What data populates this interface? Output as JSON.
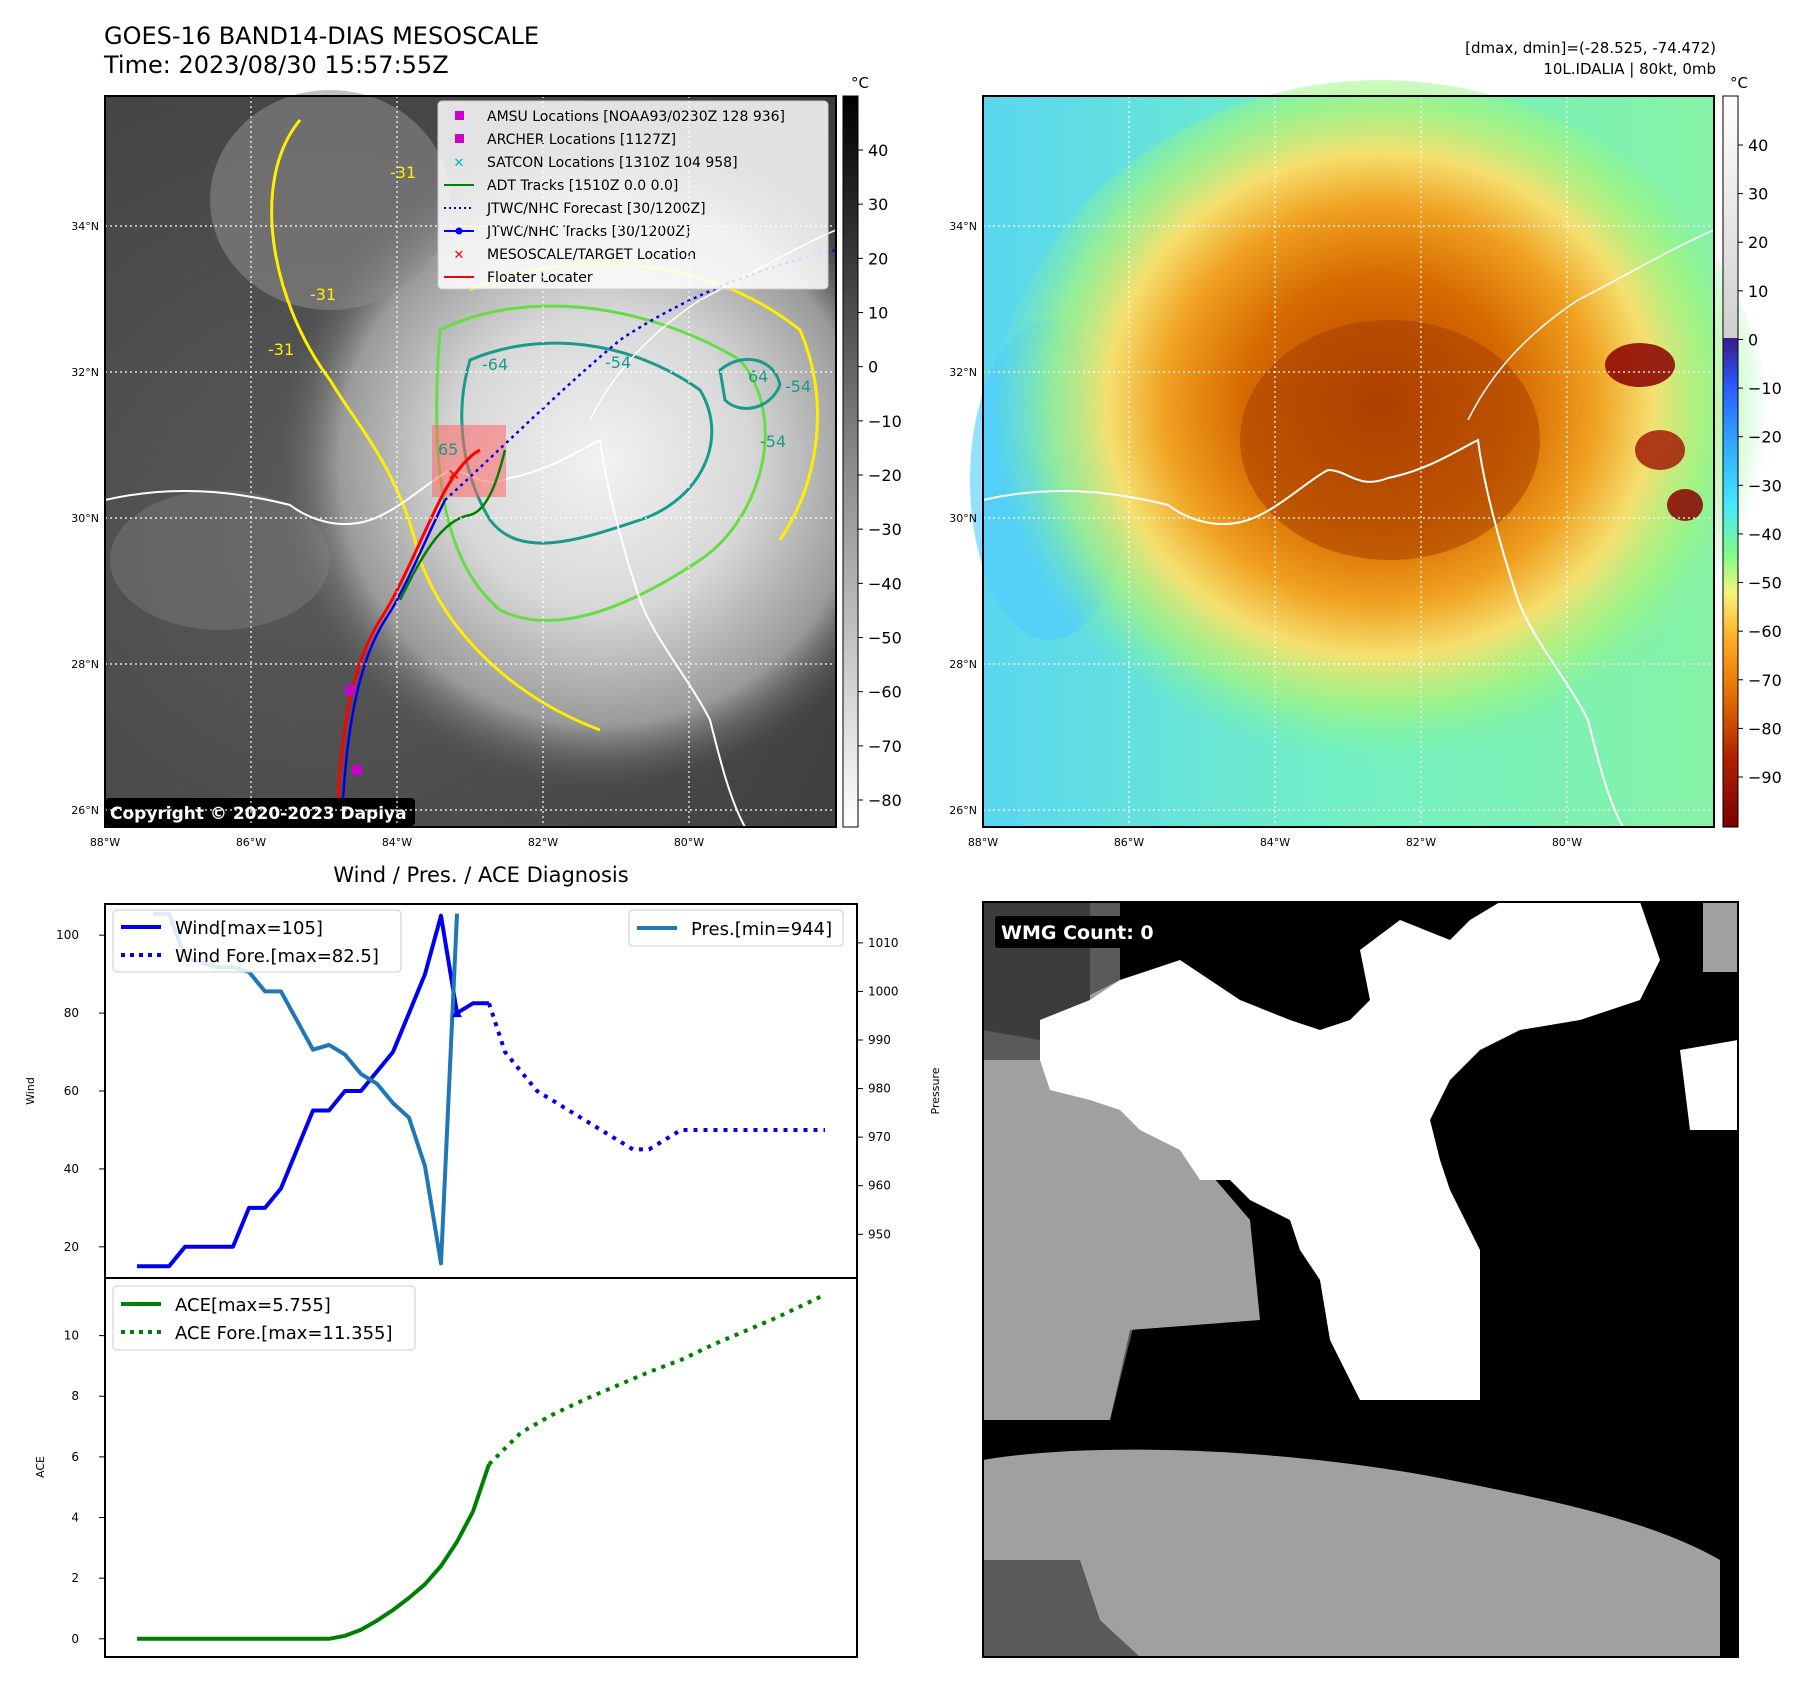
{
  "header": {
    "title": "GOES-16 BAND14-DIAS MESOSCALE",
    "time": "Time: 2023/08/30 15:57:55Z",
    "dminmax": "[dmax, dmin]=(-28.525, -74.472)",
    "storm": "10L.IDALIA | 80kt, 0mb",
    "copyright": "Copyright © 2020-2023 Dapiya"
  },
  "colors": {
    "wind": "#0000ee",
    "pressure": "#1f77b4",
    "ace": "#008000",
    "adt": "#008000",
    "floater": "#ff0000",
    "amsu": "#cc00cc",
    "satcon": "#00bbbb"
  },
  "map_axes": {
    "unit": "°C",
    "lat_labels": [
      "34°N",
      "32°N",
      "30°N",
      "28°N",
      "26°N"
    ],
    "lon_labels": [
      "88°W",
      "86°W",
      "84°W",
      "82°W",
      "80°W"
    ],
    "gray_bar_ticks": [
      "40",
      "30",
      "20",
      "10",
      "0",
      "−10",
      "−20",
      "−30",
      "−40",
      "−50",
      "−60",
      "−70",
      "−80"
    ],
    "color_bar_ticks": [
      "40",
      "30",
      "20",
      "10",
      "0",
      "−10",
      "−20",
      "−30",
      "−40",
      "−50",
      "−60",
      "−70",
      "−80",
      "−90"
    ],
    "contour_labels": [
      "-31",
      "-31",
      "-31",
      "-64",
      "-54",
      "64",
      "-54",
      "-54",
      "65"
    ]
  },
  "map_legend": [
    {
      "label": "AMSU Locations [NOAA93/0230Z 128 936]",
      "marker": "square",
      "color": "#cc00cc"
    },
    {
      "label": "ARCHER Locations [1127Z]",
      "marker": "square",
      "color": "#cc00cc"
    },
    {
      "label": "SATCON Locations [1310Z 104 958]",
      "marker": "x",
      "color": "#00bbbb"
    },
    {
      "label": "ADT Tracks [1510Z 0.0 0.0]",
      "marker": "line",
      "color": "#008000"
    },
    {
      "label": "JTWC/NHC Forecast [30/1200Z]",
      "marker": "dotted",
      "color": "#0000ee"
    },
    {
      "label": "JTWC/NHC Tracks [30/1200Z]",
      "marker": "line-dot",
      "color": "#0000ee"
    },
    {
      "label": "MESOSCALE/TARGET Location",
      "marker": "x",
      "color": "#ff0000"
    },
    {
      "label": "Floater Locater",
      "marker": "line",
      "color": "#ff0000"
    }
  ],
  "wmg": {
    "label": "WMG Count: 0"
  },
  "chart_data": [
    {
      "type": "line",
      "title": "Wind / Pres. / ACE Diagnosis",
      "ylabel": "Wind",
      "y2label": "Pressure",
      "ylim": [
        12,
        108
      ],
      "y2lim": [
        941,
        1018
      ],
      "yticks": [
        20,
        40,
        60,
        80,
        100
      ],
      "y2ticks": [
        950,
        960,
        970,
        980,
        990,
        1000,
        1010
      ],
      "legend": [
        "Wind[max=105]",
        "Wind Fore.[max=82.5]",
        "Pres.[min=944]"
      ],
      "x": [
        0,
        1,
        2,
        3,
        4,
        5,
        6,
        7,
        8,
        9,
        10,
        11,
        12,
        13,
        14,
        15,
        16,
        17,
        18,
        19,
        20,
        21,
        22,
        23,
        24,
        25,
        26,
        27,
        28,
        29,
        30,
        31,
        32,
        33,
        34,
        35,
        36,
        37,
        38,
        39,
        40,
        41,
        42,
        43
      ],
      "series": [
        {
          "name": "Wind[max=105]",
          "style": "solid",
          "color": "#0000ee",
          "x": [
            0,
            2,
            3,
            4,
            5,
            6,
            7,
            8,
            9,
            10,
            11,
            12,
            13,
            14,
            15,
            16,
            17,
            18,
            19,
            20,
            21,
            22
          ],
          "values": [
            15,
            15,
            20,
            20,
            20,
            20,
            30,
            30,
            35,
            45,
            55,
            55,
            60,
            60,
            65,
            70,
            80,
            90,
            105,
            80,
            82.5,
            82.5
          ]
        },
        {
          "name": "Wind Fore.[max=82.5]",
          "style": "dotted",
          "color": "#0000ee",
          "x": [
            22,
            23,
            24,
            25,
            26,
            27,
            28,
            29,
            30,
            31,
            32,
            33,
            34,
            35,
            36,
            37,
            38,
            39,
            40,
            41,
            42,
            43
          ],
          "values": [
            82.5,
            70,
            65,
            60,
            57.5,
            55,
            52.5,
            50,
            47.5,
            45,
            45,
            47.5,
            50,
            50,
            50,
            50,
            50,
            50,
            50,
            50,
            50,
            50
          ]
        },
        {
          "name": "Pres.[min=944]",
          "style": "solid",
          "color": "#1f77b4",
          "x": [
            1,
            2,
            3,
            4,
            5,
            6,
            7,
            8,
            9,
            10,
            11,
            12,
            13,
            14,
            15,
            16,
            17,
            18,
            19,
            20
          ],
          "values": [
            1016,
            1016,
            1007,
            1006,
            1005,
            1005,
            1004,
            1000,
            1000,
            994,
            988,
            989,
            987,
            983,
            981,
            977,
            974,
            964,
            944,
            1016
          ]
        }
      ]
    },
    {
      "type": "line",
      "ylabel": "ACE",
      "ylim": [
        -0.6,
        11.9
      ],
      "yticks": [
        0,
        2,
        4,
        6,
        8,
        10
      ],
      "legend": [
        "ACE[max=5.755]",
        "ACE Fore.[max=11.355]"
      ],
      "series": [
        {
          "name": "ACE[max=5.755]",
          "style": "solid",
          "color": "#008000",
          "x": [
            0,
            2,
            4,
            6,
            8,
            10,
            12,
            13,
            14,
            15,
            16,
            17,
            18,
            19,
            20,
            21,
            22
          ],
          "values": [
            0,
            0,
            0,
            0,
            0,
            0,
            0,
            0.1,
            0.3,
            0.6,
            0.95,
            1.35,
            1.8,
            2.4,
            3.2,
            4.2,
            5.755
          ]
        },
        {
          "name": "ACE Fore.[max=11.355]",
          "style": "dotted",
          "color": "#008000",
          "x": [
            22,
            24,
            26,
            28,
            30,
            32,
            34,
            36,
            38,
            40,
            42,
            43
          ],
          "values": [
            5.755,
            6.8,
            7.4,
            7.9,
            8.35,
            8.8,
            9.2,
            9.7,
            10.15,
            10.6,
            11.1,
            11.355
          ]
        }
      ]
    }
  ]
}
